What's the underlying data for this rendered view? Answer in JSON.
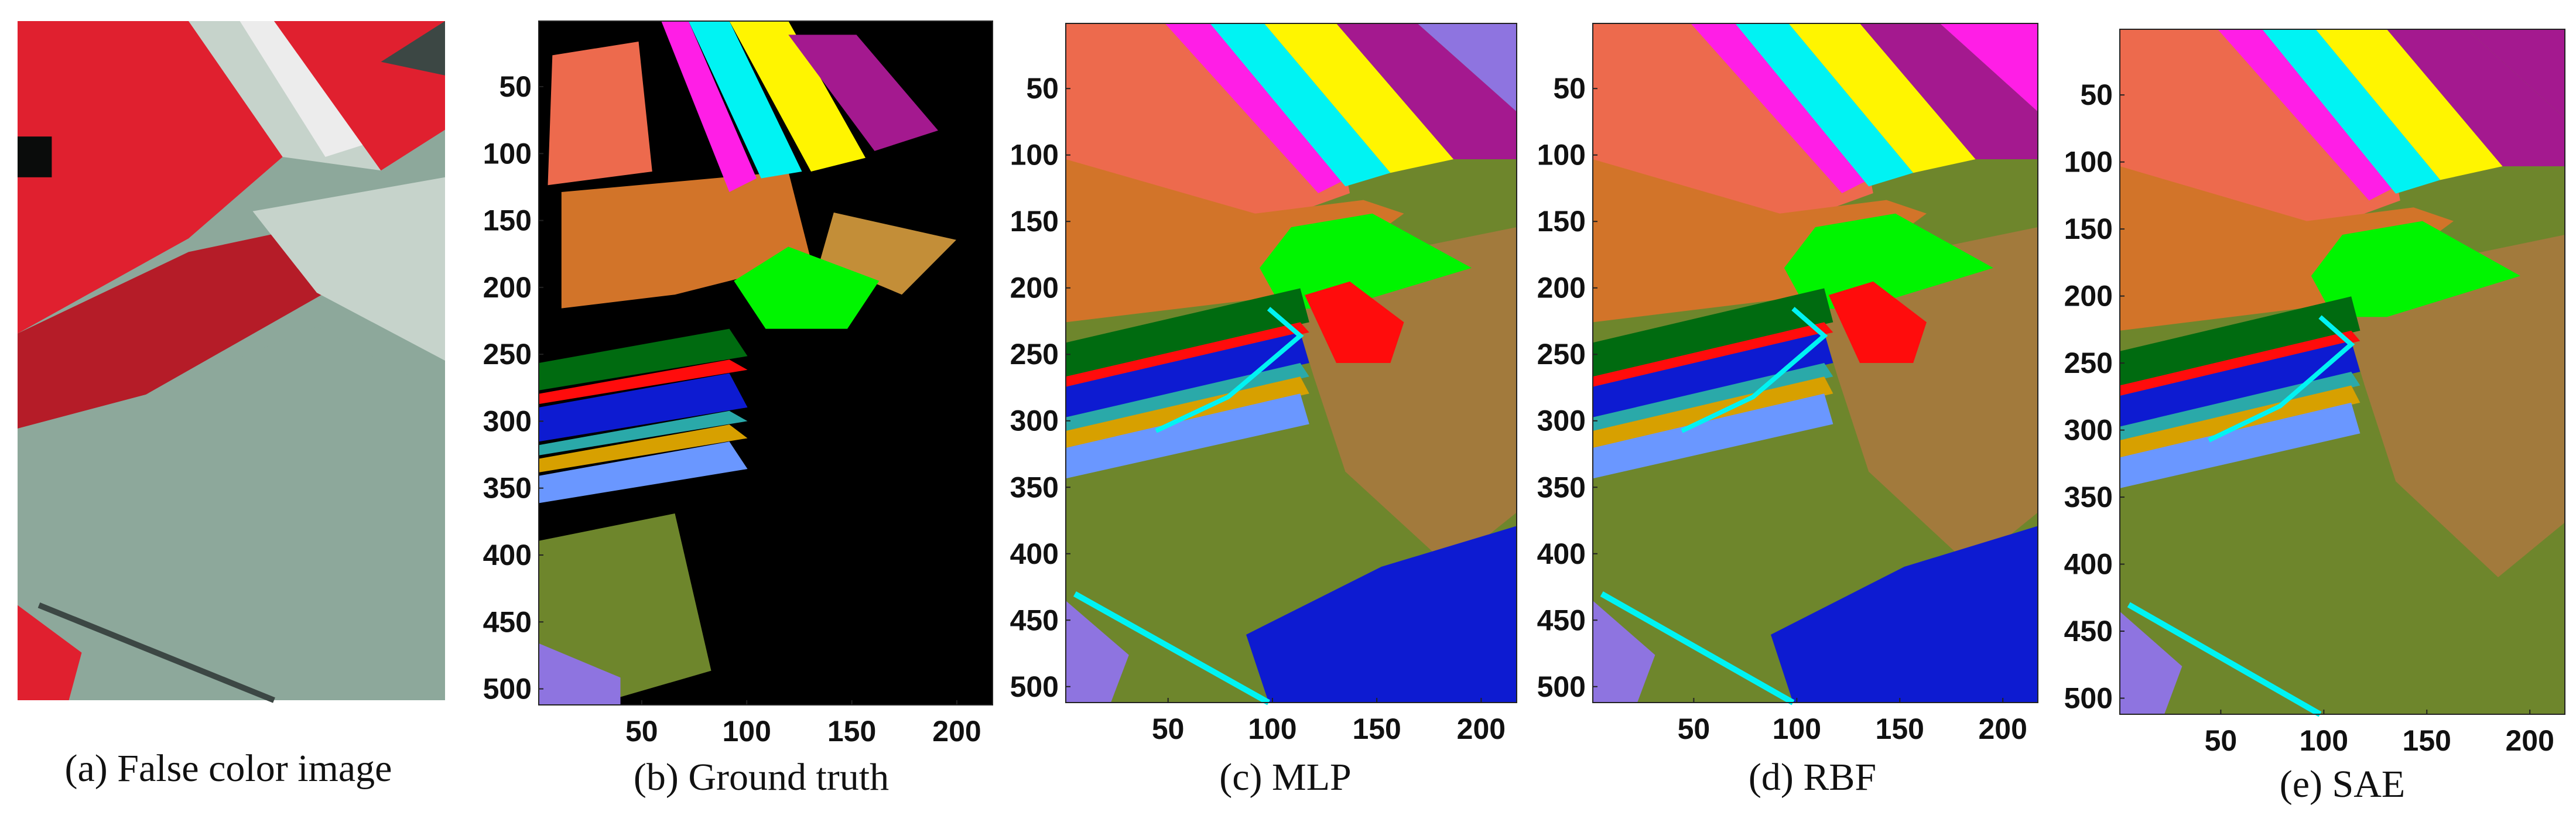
{
  "figure": {
    "panels": [
      {
        "id": "a",
        "caption": "(a) False color image",
        "kind": "false-color",
        "show_axes": false
      },
      {
        "id": "b",
        "caption": "(b) Ground truth",
        "kind": "ground-truth",
        "show_axes": true
      },
      {
        "id": "c",
        "caption": "(c) MLP",
        "kind": "classification",
        "show_axes": true
      },
      {
        "id": "d",
        "caption": "(d) RBF",
        "kind": "classification",
        "show_axes": true
      },
      {
        "id": "e",
        "caption": "(e) SAE",
        "kind": "classification",
        "show_axes": true
      }
    ],
    "axes": {
      "y_ticks": [
        "50",
        "100",
        "150",
        "200",
        "250",
        "300",
        "350",
        "400",
        "450",
        "500"
      ],
      "x_ticks": [
        "50",
        "100",
        "150",
        "200"
      ]
    }
  },
  "chart_data": {
    "type": "heatmap",
    "description_units": "image rows 1-512, columns 1-217",
    "x_range": [
      1,
      217
    ],
    "y_range": [
      1,
      512
    ],
    "x_ticks": [
      50,
      100,
      150,
      200
    ],
    "y_ticks": [
      50,
      100,
      150,
      200,
      250,
      300,
      350,
      400,
      450,
      500
    ],
    "class_colors": {
      "background": "#000000",
      "salmon": "#ed6a4d",
      "orange_brown": "#d27429",
      "magenta": "#ff1ee6",
      "cyan": "#00f3f3",
      "yellow": "#fff500",
      "purple": "#a4198f",
      "tan": "#c38e38",
      "green": "#00f500",
      "dark_green": "#006b10",
      "red": "#ff0c0c",
      "blue": "#0d1bd1",
      "teal": "#2aa9a9",
      "gold": "#d7a000",
      "light_blue": "#6a97ff",
      "olive": "#6e862c",
      "lavender": "#8e74e0",
      "brown": "#a27a3c"
    },
    "false_color": {
      "red": "#e0202f",
      "dark_red": "#b51c28",
      "gray_green": "#8da89b",
      "light_gray": "#c6d3cb",
      "dark_gray": "#3c4744",
      "white": "#ececec",
      "black": "#0a0c0b"
    }
  }
}
